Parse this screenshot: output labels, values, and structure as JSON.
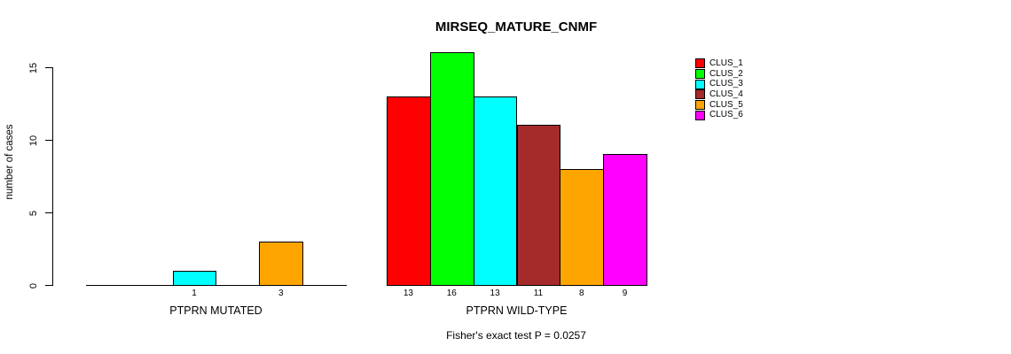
{
  "chart_data": {
    "type": "bar",
    "title": "MIRSEQ_MATURE_CNMF",
    "subtitle": "Fisher's exact test P = 0.0257",
    "ylabel": "number of cases",
    "xlabel": "",
    "y_ticks": [
      0,
      5,
      10,
      15
    ],
    "ylim": [
      0,
      16.5
    ],
    "grid": false,
    "bar_border_color": "#000000",
    "legend": {
      "position": "top-right",
      "items": [
        {
          "label": "CLUS_1",
          "color": "#ff0000"
        },
        {
          "label": "CLUS_2",
          "color": "#00ff00"
        },
        {
          "label": "CLUS_3",
          "color": "#00ffff"
        },
        {
          "label": "CLUS_4",
          "color": "#a52a2a"
        },
        {
          "label": "CLUS_5",
          "color": "#ffa500"
        },
        {
          "label": "CLUS_6",
          "color": "#ff00ff"
        }
      ]
    },
    "groups": [
      {
        "label": "PTPRN MUTATED",
        "bars": [
          {
            "cluster": "CLUS_3",
            "value": 1
          },
          {
            "cluster": "CLUS_5",
            "value": 3
          }
        ]
      },
      {
        "label": "PTPRN WILD-TYPE",
        "bars": [
          {
            "cluster": "CLUS_1",
            "value": 13
          },
          {
            "cluster": "CLUS_2",
            "value": 16
          },
          {
            "cluster": "CLUS_3",
            "value": 13
          },
          {
            "cluster": "CLUS_4",
            "value": 11
          },
          {
            "cluster": "CLUS_5",
            "value": 8
          },
          {
            "cluster": "CLUS_6",
            "value": 9
          }
        ]
      }
    ]
  }
}
